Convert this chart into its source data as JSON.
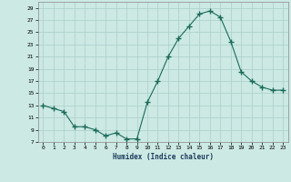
{
  "x": [
    0,
    1,
    2,
    3,
    4,
    5,
    6,
    7,
    8,
    9,
    10,
    11,
    12,
    13,
    14,
    15,
    16,
    17,
    18,
    19,
    20,
    21,
    22,
    23
  ],
  "y": [
    13,
    12.5,
    12,
    9.5,
    9.5,
    9,
    8,
    8.5,
    7.5,
    7.5,
    13.5,
    17,
    21,
    24,
    26,
    28,
    28.5,
    27.5,
    23.5,
    18.5,
    17,
    16,
    15.5,
    15.5
  ],
  "line_color": "#1a6b5a",
  "marker": "+",
  "marker_size": 4,
  "bg_color": "#cce9e4",
  "grid_color": "#aacfc8",
  "xlabel": "Humidex (Indice chaleur)",
  "xlim": [
    -0.5,
    23.5
  ],
  "ylim": [
    7,
    30
  ],
  "yticks": [
    7,
    9,
    11,
    13,
    15,
    17,
    19,
    21,
    23,
    25,
    27,
    29
  ],
  "xticks": [
    0,
    1,
    2,
    3,
    4,
    5,
    6,
    7,
    8,
    9,
    10,
    11,
    12,
    13,
    14,
    15,
    16,
    17,
    18,
    19,
    20,
    21,
    22,
    23
  ]
}
